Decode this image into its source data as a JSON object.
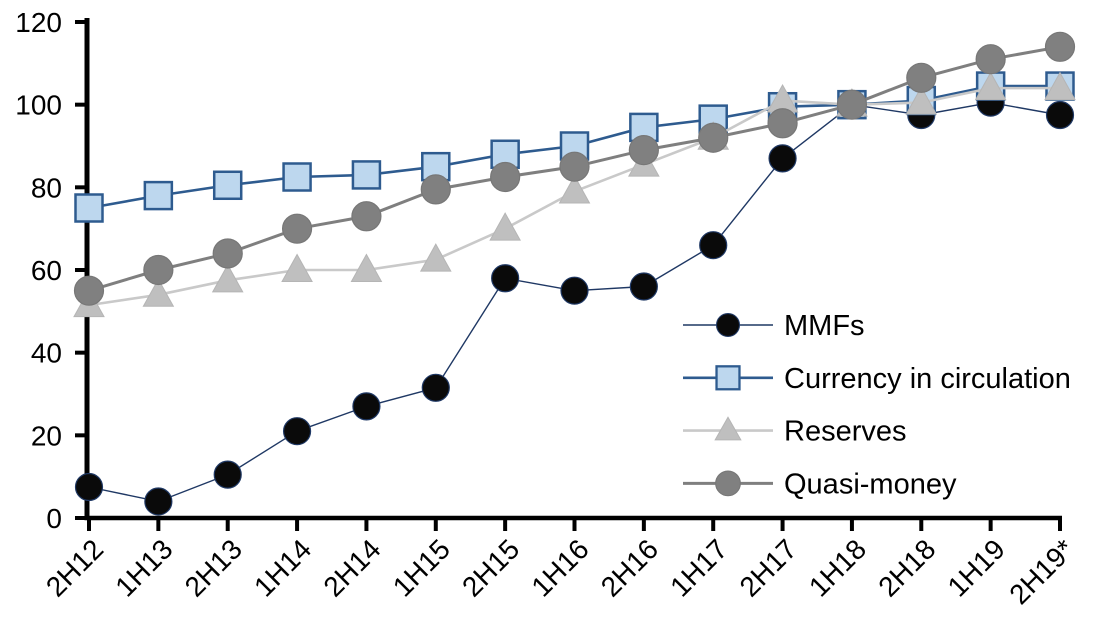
{
  "chart_data": {
    "type": "line",
    "title": "",
    "xlabel": "",
    "ylabel": "",
    "categories": [
      "2H12",
      "1H13",
      "2H13",
      "1H14",
      "2H14",
      "1H15",
      "2H15",
      "1H16",
      "2H16",
      "1H17",
      "2H17",
      "1H18",
      "2H18",
      "1H19",
      "2H19*"
    ],
    "series": [
      {
        "name": "MMFs",
        "marker": "circle",
        "marker_fill": "#0a0a0a",
        "marker_stroke": "#1F3864",
        "line_color": "#1F3864",
        "line_width": 1.4,
        "marker_size": 27,
        "values": [
          7.5,
          4,
          10.5,
          21,
          27,
          31.5,
          58,
          55,
          56,
          66,
          87,
          100,
          97.5,
          100.5,
          97.5
        ]
      },
      {
        "name": "Currency in circulation",
        "marker": "square",
        "marker_fill": "#BDD7EE",
        "marker_stroke": "#2E5B8F",
        "line_color": "#2E5B8F",
        "line_width": 2.6,
        "marker_size": 27,
        "values": [
          75,
          78,
          80.5,
          82.5,
          83,
          85,
          88,
          90,
          94.5,
          96.5,
          99.5,
          100,
          101,
          104.5,
          104.5
        ]
      },
      {
        "name": "Reserves",
        "marker": "triangle",
        "marker_fill": "#BFBFBF",
        "marker_stroke": "#B5B5B5",
        "line_color": "#C9C9C9",
        "line_width": 2.6,
        "marker_size": 29,
        "values": [
          51.5,
          54,
          57.5,
          60,
          60,
          62.5,
          70,
          79,
          85.5,
          92,
          101,
          100,
          100.5,
          104,
          104
        ]
      },
      {
        "name": "Quasi-money",
        "marker": "circle",
        "marker_fill": "#808080",
        "marker_stroke": "#777777",
        "line_color": "#7F7F7F",
        "line_width": 3,
        "marker_size": 29,
        "values": [
          55,
          60,
          64,
          70,
          73,
          79.5,
          82.5,
          85,
          89,
          92,
          95.5,
          100,
          106.5,
          111,
          114
        ]
      }
    ],
    "ylim": [
      0,
      120
    ],
    "ytick_step": 20,
    "ytick_labels": [
      "0",
      "20",
      "40",
      "60",
      "80",
      "100",
      "120"
    ],
    "grid": false,
    "legend_position": "inside-right",
    "legend_labels": [
      "MMFs",
      "Currency in circulation",
      "Reserves",
      "Quasi-money"
    ],
    "axis_color": "#000000",
    "background": "#FFFFFF"
  }
}
